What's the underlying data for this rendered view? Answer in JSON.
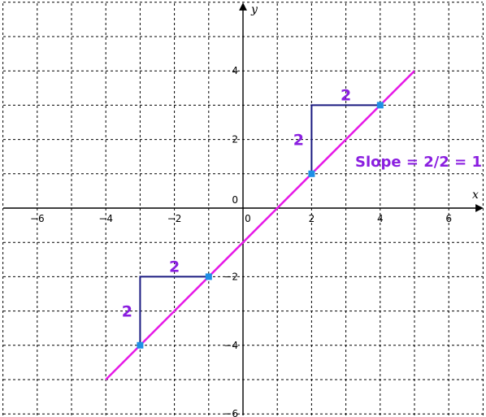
{
  "chart_data": {
    "type": "line",
    "title": "",
    "xlabel": "x",
    "ylabel": "y",
    "xlim": [
      -7,
      7
    ],
    "ylim": [
      -6,
      6
    ],
    "grid": true,
    "x_ticks": [
      -6,
      -4,
      -2,
      2,
      4,
      6
    ],
    "y_ticks": [
      4,
      2,
      -2,
      -4,
      -6
    ],
    "x_tick_labels": [
      "−6",
      "−4",
      "−2",
      "2",
      "4",
      "6"
    ],
    "y_tick_labels": [
      "4",
      "2",
      "−2",
      "−4",
      "−6"
    ],
    "origin_labels": {
      "x": "0",
      "y": "0"
    },
    "series": [
      {
        "color": "#e619e6",
        "x": [
          -4,
          5
        ],
        "y": [
          -5,
          4
        ]
      }
    ],
    "points": [
      {
        "x": -3,
        "y": -4
      },
      {
        "x": -1,
        "y": -2
      },
      {
        "x": 2,
        "y": 1
      },
      {
        "x": 4,
        "y": 3
      }
    ],
    "point_color": "#1e8fe6",
    "slope_triangles": [
      {
        "corner": [
          -3,
          -2
        ],
        "from": [
          -3,
          -4
        ],
        "to": [
          -1,
          -2
        ],
        "rise_label": "2",
        "run_label": "2"
      },
      {
        "corner": [
          2,
          3
        ],
        "from": [
          2,
          1
        ],
        "to": [
          4,
          3
        ],
        "rise_label": "2",
        "run_label": "2"
      }
    ],
    "triangle_color": "#1a1a80",
    "annotation": "Slope = 2/2 = 1",
    "annotation_color": "#8a1ee0"
  }
}
